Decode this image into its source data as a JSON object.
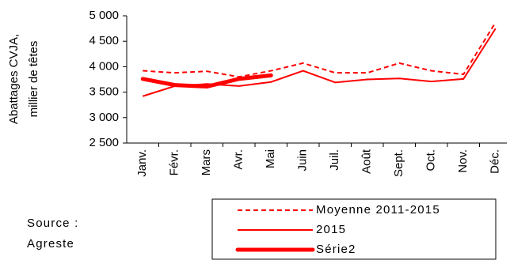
{
  "chart_data": {
    "type": "line",
    "y_label_lines": [
      "Abattages CVJA,",
      "millier de têtes"
    ],
    "categories": [
      "Janv.",
      "Févr.",
      "Mars",
      "Avr.",
      "Mai",
      "Juin",
      "Juil.",
      "Août",
      "Sept.",
      "Oct.",
      "Nov.",
      "Déc."
    ],
    "series": [
      {
        "name": "Moyenne 2011-2015",
        "color": "#ff0000",
        "dash": true,
        "width": 2,
        "values": [
          3920,
          3880,
          3910,
          3800,
          3920,
          4070,
          3880,
          3880,
          4070,
          3920,
          3850,
          4870
        ]
      },
      {
        "name": "2015",
        "color": "#ff0000",
        "dash": false,
        "width": 2,
        "values": [
          3420,
          3620,
          3660,
          3620,
          3700,
          3920,
          3690,
          3750,
          3770,
          3710,
          3760,
          4750
        ]
      },
      {
        "name": "Série2",
        "color": "#ff0000",
        "dash": false,
        "width": 5,
        "values": [
          3760,
          3640,
          3610,
          3760,
          3830,
          null,
          null,
          null,
          null,
          null,
          null,
          null
        ]
      }
    ],
    "ylim": [
      2500,
      5000
    ],
    "yticks": [
      {
        "value": 2500,
        "label": "2 500"
      },
      {
        "value": 3000,
        "label": "3 000"
      },
      {
        "value": 3500,
        "label": "3 500"
      },
      {
        "value": 4000,
        "label": "4 000"
      },
      {
        "value": 4500,
        "label": "4 500"
      },
      {
        "value": 5000,
        "label": "5 000"
      }
    ],
    "grid": false,
    "source_lines": [
      "Source :",
      "Agreste"
    ]
  }
}
